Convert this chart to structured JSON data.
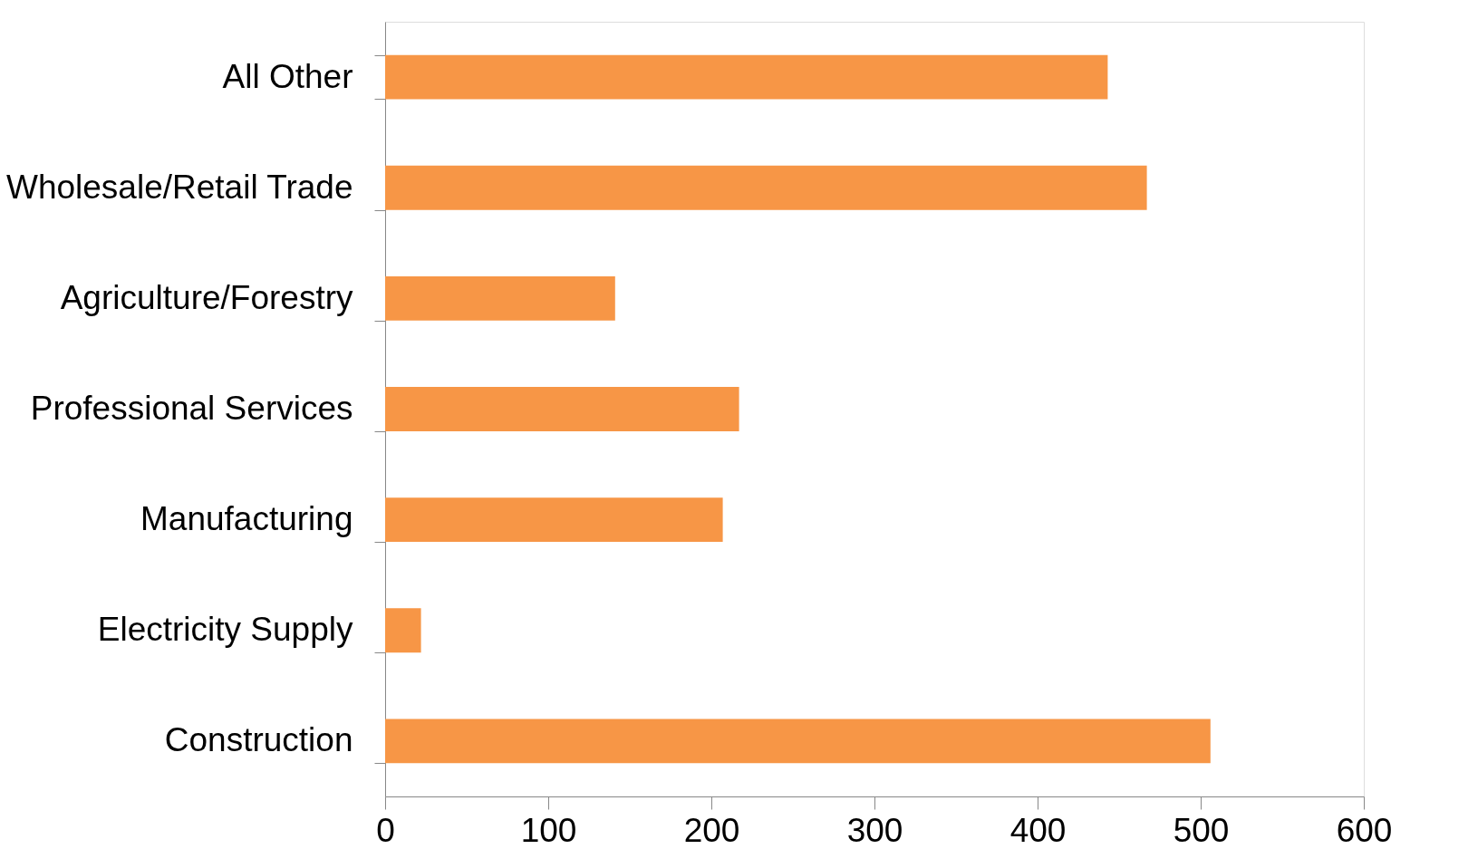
{
  "chart_data": {
    "type": "bar",
    "orientation": "horizontal",
    "categories": [
      "All Other",
      "Wholesale/Retail Trade",
      "Agriculture/Forestry",
      "Professional Services",
      "Manufacturing",
      "Electricity Supply",
      "Construction"
    ],
    "values": [
      443,
      467,
      141,
      217,
      207,
      22,
      506
    ],
    "color": "#f79646",
    "xlim": [
      0,
      600
    ],
    "xticks": [
      0,
      100,
      200,
      300,
      400,
      500,
      600
    ],
    "grid": false
  }
}
